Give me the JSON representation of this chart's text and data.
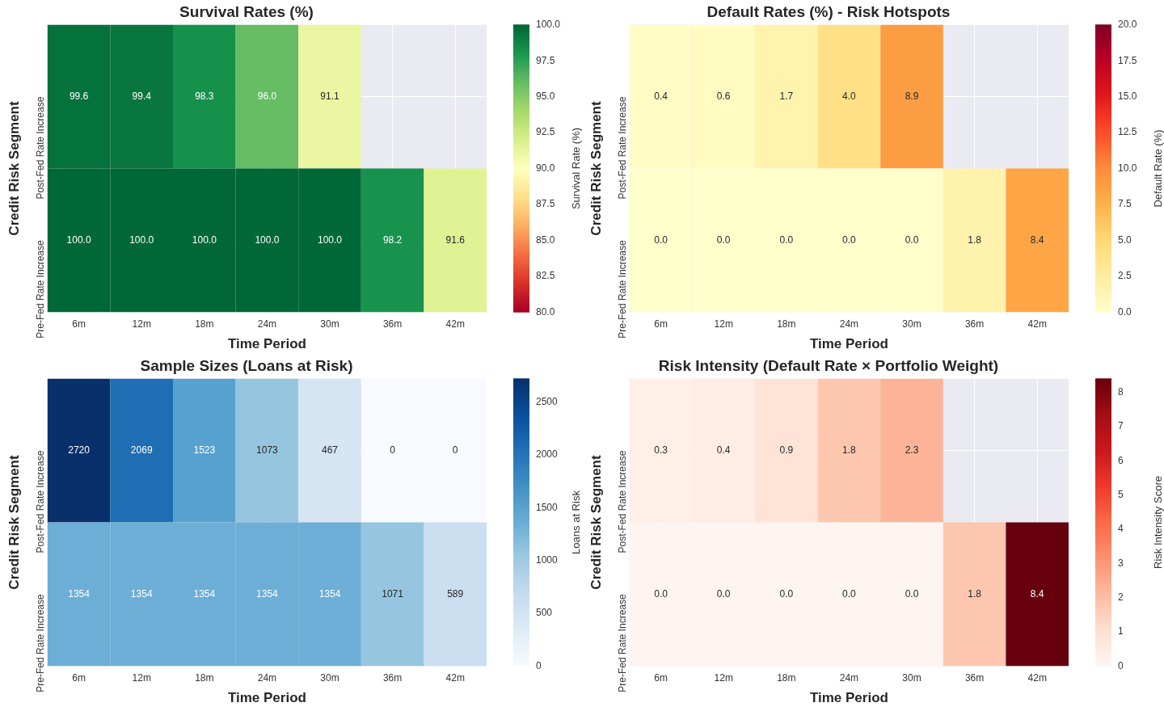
{
  "chart_data": [
    {
      "type": "heatmap",
      "title": "Survival Rates (%)",
      "xlabel": "Time Period",
      "ylabel": "Credit Risk Segment",
      "clabel": "Survival Rate (%)",
      "grid": true,
      "categories": [
        "6m",
        "12m",
        "18m",
        "24m",
        "30m",
        "36m",
        "42m"
      ],
      "y_categories": [
        "Post-Fed Rate Increase",
        "Pre-Fed Rate Increase"
      ],
      "cells": [
        [
          99.6,
          99.4,
          98.3,
          96.0,
          91.1,
          null,
          null
        ],
        [
          100,
          100,
          100,
          100,
          100,
          98.2,
          91.6
        ]
      ],
      "cell_labels": [
        [
          "99.6",
          "99.4",
          "98.3",
          "96.0",
          "91.1",
          null,
          null
        ],
        [
          "100.0",
          "100.0",
          "100.0",
          "100.0",
          "100.0",
          "98.2",
          "91.6"
        ]
      ],
      "clim": [
        80,
        100
      ],
      "cticks": [
        {
          "value": 80,
          "label": "80.0"
        },
        {
          "value": 82.5,
          "label": "82.5"
        },
        {
          "value": 85,
          "label": "85.0"
        },
        {
          "value": 87.5,
          "label": "87.5"
        },
        {
          "value": 90,
          "label": "90.0"
        },
        {
          "value": 92.5,
          "label": "92.5"
        },
        {
          "value": 95,
          "label": "95.0"
        },
        {
          "value": 97.5,
          "label": "97.5"
        },
        {
          "value": 100,
          "label": "100.0"
        }
      ],
      "colors": [
        "#a50026",
        "#d73027",
        "#f46d43",
        "#fdae61",
        "#fee08b",
        "#ffffbf",
        "#d9ef8b",
        "#a6d96a",
        "#66bd63",
        "#1a9850",
        "#006837"
      ]
    },
    {
      "type": "heatmap",
      "title": "Default Rates (%) - Risk Hotspots",
      "xlabel": "Time Period",
      "ylabel": "Credit Risk Segment",
      "clabel": "Default Rate (%)",
      "grid": true,
      "categories": [
        "6m",
        "12m",
        "18m",
        "24m",
        "30m",
        "36m",
        "42m"
      ],
      "y_categories": [
        "Post-Fed Rate Increase",
        "Pre-Fed Rate Increase"
      ],
      "cells": [
        [
          0.4,
          0.6,
          1.7,
          4.0,
          8.9,
          null,
          null
        ],
        [
          0,
          0,
          0,
          0,
          0,
          1.8,
          8.4
        ]
      ],
      "cell_labels": [
        [
          "0.4",
          "0.6",
          "1.7",
          "4.0",
          "8.9",
          null,
          null
        ],
        [
          "0.0",
          "0.0",
          "0.0",
          "0.0",
          "0.0",
          "1.8",
          "8.4"
        ]
      ],
      "clim": [
        0,
        20
      ],
      "cticks": [
        {
          "value": 0,
          "label": "0.0"
        },
        {
          "value": 2.5,
          "label": "2.5"
        },
        {
          "value": 5,
          "label": "5.0"
        },
        {
          "value": 7.5,
          "label": "7.5"
        },
        {
          "value": 10,
          "label": "10.0"
        },
        {
          "value": 12.5,
          "label": "12.5"
        },
        {
          "value": 15,
          "label": "15.0"
        },
        {
          "value": 17.5,
          "label": "17.5"
        },
        {
          "value": 20,
          "label": "20.0"
        }
      ],
      "colors": [
        "#ffffcc",
        "#ffeda0",
        "#fed976",
        "#feb24c",
        "#fd8d3c",
        "#fc4e2a",
        "#e31a1c",
        "#bd0026",
        "#800026"
      ]
    },
    {
      "type": "heatmap",
      "title": "Sample Sizes (Loans at Risk)",
      "xlabel": "Time Period",
      "ylabel": "Credit Risk Segment",
      "clabel": "Loans at Risk",
      "grid": true,
      "categories": [
        "6m",
        "12m",
        "18m",
        "24m",
        "30m",
        "36m",
        "42m"
      ],
      "y_categories": [
        "Post-Fed Rate Increase",
        "Pre-Fed Rate Increase"
      ],
      "cells": [
        [
          2720,
          2069,
          1523,
          1073,
          467,
          0,
          0
        ],
        [
          1354,
          1354,
          1354,
          1354,
          1354,
          1071,
          589
        ]
      ],
      "data_labels": true,
      "clim": [
        0,
        2720
      ],
      "cticks": [
        0,
        500,
        1000,
        1500,
        2000,
        2500
      ],
      "colors": [
        "#f7fbff",
        "#deebf7",
        "#c6dbef",
        "#9ecae1",
        "#6baed6",
        "#4292c6",
        "#2171b5",
        "#08519c",
        "#08306b"
      ]
    },
    {
      "type": "heatmap",
      "title": "Risk Intensity (Default Rate × Portfolio Weight)",
      "xlabel": "Time Period",
      "ylabel": "Credit Risk Segment",
      "clabel": "Risk Intensity Score",
      "grid": true,
      "categories": [
        "6m",
        "12m",
        "18m",
        "24m",
        "30m",
        "36m",
        "42m"
      ],
      "y_categories": [
        "Post-Fed Rate Increase",
        "Pre-Fed Rate Increase"
      ],
      "cells": [
        [
          0.3,
          0.4,
          0.9,
          1.8,
          2.3,
          null,
          null
        ],
        [
          0,
          0,
          0,
          0,
          0,
          1.8,
          8.4
        ]
      ],
      "cell_labels": [
        [
          "0.3",
          "0.4",
          "0.9",
          "1.8",
          "2.3",
          null,
          null
        ],
        [
          "0.0",
          "0.0",
          "0.0",
          "0.0",
          "0.0",
          "1.8",
          "8.4"
        ]
      ],
      "clim": [
        0,
        8.4
      ],
      "cticks": [
        0,
        1,
        2,
        3,
        4,
        5,
        6,
        7,
        8
      ],
      "colors": [
        "#fff5f0",
        "#fee0d2",
        "#fcbba1",
        "#fc9272",
        "#fb6a4a",
        "#ef3b2c",
        "#cb181d",
        "#a50f15",
        "#67000d"
      ]
    }
  ]
}
